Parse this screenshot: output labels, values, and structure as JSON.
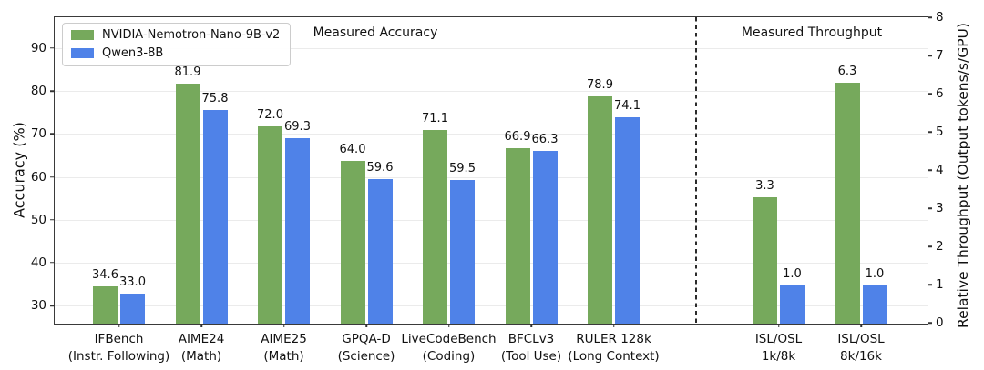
{
  "figure": {
    "background": "#ffffff",
    "colors": {
      "green": "#76a95c",
      "blue": "#4f82e8",
      "grid": "#ebebeb",
      "spine": "#3a3a3a"
    }
  },
  "chart_data": {
    "type": "bar",
    "section_titles": [
      "Measured Accuracy",
      "Measured Throughput"
    ],
    "legend_position": "upper left",
    "grid": "horizontal",
    "series": [
      {
        "name": "NVIDIA-Nemotron-Nano-9B-v2",
        "color": "#76a95c"
      },
      {
        "name": "Qwen3-8B",
        "color": "#4f82e8"
      }
    ],
    "left_axis": {
      "title": "Accuracy (%)",
      "ticks": [
        30,
        40,
        50,
        60,
        70,
        80,
        90
      ],
      "min": 26.0,
      "max": 97.2
    },
    "right_axis": {
      "title": "Relative Throughput (Output tokens/s/GPU)",
      "ticks": [
        0,
        1,
        2,
        3,
        4,
        5,
        6,
        7,
        8
      ],
      "min": 0,
      "max": 8
    },
    "divider_slot": 7,
    "groups": [
      {
        "slot": 0,
        "axis": "left",
        "label": [
          "IFBench",
          "(Instr. Following)"
        ],
        "values": [
          34.6,
          33.0
        ]
      },
      {
        "slot": 1,
        "axis": "left",
        "label": [
          "AIME24",
          "(Math)"
        ],
        "values": [
          81.9,
          75.8
        ]
      },
      {
        "slot": 2,
        "axis": "left",
        "label": [
          "AIME25",
          "(Math)"
        ],
        "values": [
          72.0,
          69.3
        ]
      },
      {
        "slot": 3,
        "axis": "left",
        "label": [
          "GPQA-D",
          "(Science)"
        ],
        "values": [
          64.0,
          59.6
        ]
      },
      {
        "slot": 4,
        "axis": "left",
        "label": [
          "LiveCodeBench",
          "(Coding)"
        ],
        "values": [
          71.1,
          59.5
        ]
      },
      {
        "slot": 5,
        "axis": "left",
        "label": [
          "BFCLv3",
          "(Tool Use)"
        ],
        "values": [
          66.9,
          66.3
        ]
      },
      {
        "slot": 6,
        "axis": "left",
        "label": [
          "RULER 128k",
          "(Long Context)"
        ],
        "values": [
          78.9,
          74.1
        ]
      },
      {
        "slot": 8,
        "axis": "right",
        "label": [
          "ISL/OSL",
          "1k/8k"
        ],
        "values": [
          3.3,
          1.0
        ]
      },
      {
        "slot": 9,
        "axis": "right",
        "label": [
          "ISL/OSL",
          "8k/16k"
        ],
        "values": [
          6.3,
          1.0
        ]
      }
    ]
  }
}
